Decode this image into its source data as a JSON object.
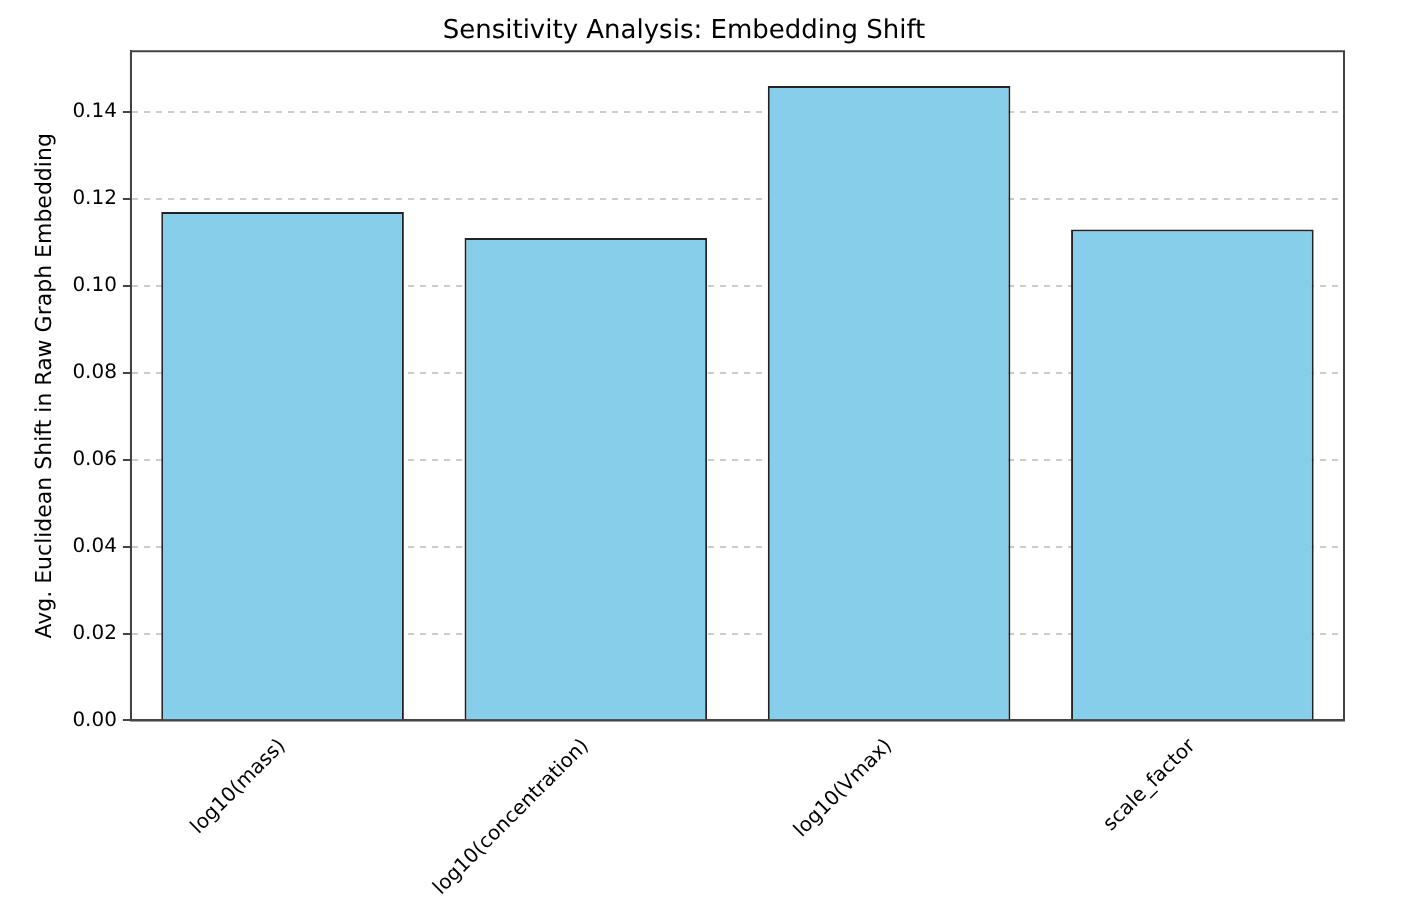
{
  "chart_data": {
    "type": "bar",
    "title": "Sensitivity Analysis: Embedding Shift",
    "ylabel": "Avg. Euclidean Shift in Raw Graph Embedding",
    "categories": [
      "log10(mass)",
      "log10(concentration)",
      "log10(Vmax)",
      "scale_factor"
    ],
    "values": [
      0.117,
      0.111,
      0.146,
      0.113
    ],
    "color": "#87ceeb",
    "ylim": [
      0,
      0.154
    ],
    "yticks": [
      {
        "value": 0,
        "label": "0.00"
      },
      {
        "value": 0.02,
        "label": "0.02"
      },
      {
        "value": 0.04,
        "label": "0.04"
      },
      {
        "value": 0.06,
        "label": "0.06"
      },
      {
        "value": 0.08,
        "label": "0.08"
      },
      {
        "value": 0.1,
        "label": "0.10"
      },
      {
        "value": 0.12,
        "label": "0.12"
      },
      {
        "value": 0.14,
        "label": "0.14"
      }
    ],
    "grid": "y"
  }
}
